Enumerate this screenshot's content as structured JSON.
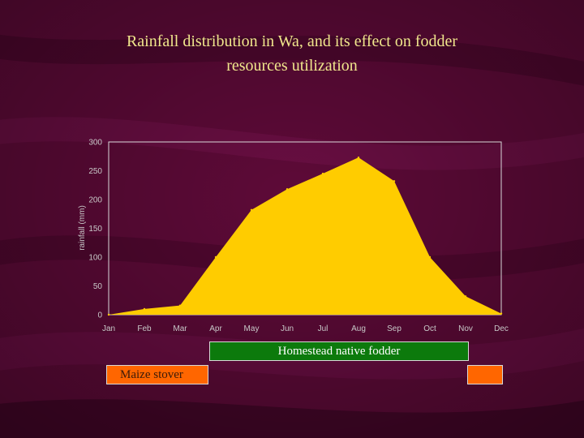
{
  "slide": {
    "title_line1": "Rainfall distribution in Wa, and its effect on fodder",
    "title_line2": "resources utilization"
  },
  "colors": {
    "background": "#5e0a38",
    "title": "#f0e68c",
    "area_fill": "#ffcc00",
    "homestead_bar": "#0c7a0c",
    "maize_bar": "#ff6600"
  },
  "bars": {
    "homestead_label": "Homestead native fodder",
    "maize_label": "Maize stover"
  },
  "chart_data": {
    "type": "area",
    "categories": [
      "Jan",
      "Feb",
      "Mar",
      "Apr",
      "May",
      "Jun",
      "Jul",
      "Aug",
      "Sep",
      "Oct",
      "Nov",
      "Dec"
    ],
    "values": [
      0,
      10,
      16,
      100,
      182,
      218,
      245,
      273,
      232,
      100,
      32,
      2
    ],
    "title": "",
    "xlabel": "",
    "ylabel": "rainfall (mm)",
    "ylim": [
      0,
      300
    ],
    "yticks": [
      0,
      50,
      100,
      150,
      200,
      250,
      300
    ],
    "grid": false,
    "legend": "none"
  }
}
